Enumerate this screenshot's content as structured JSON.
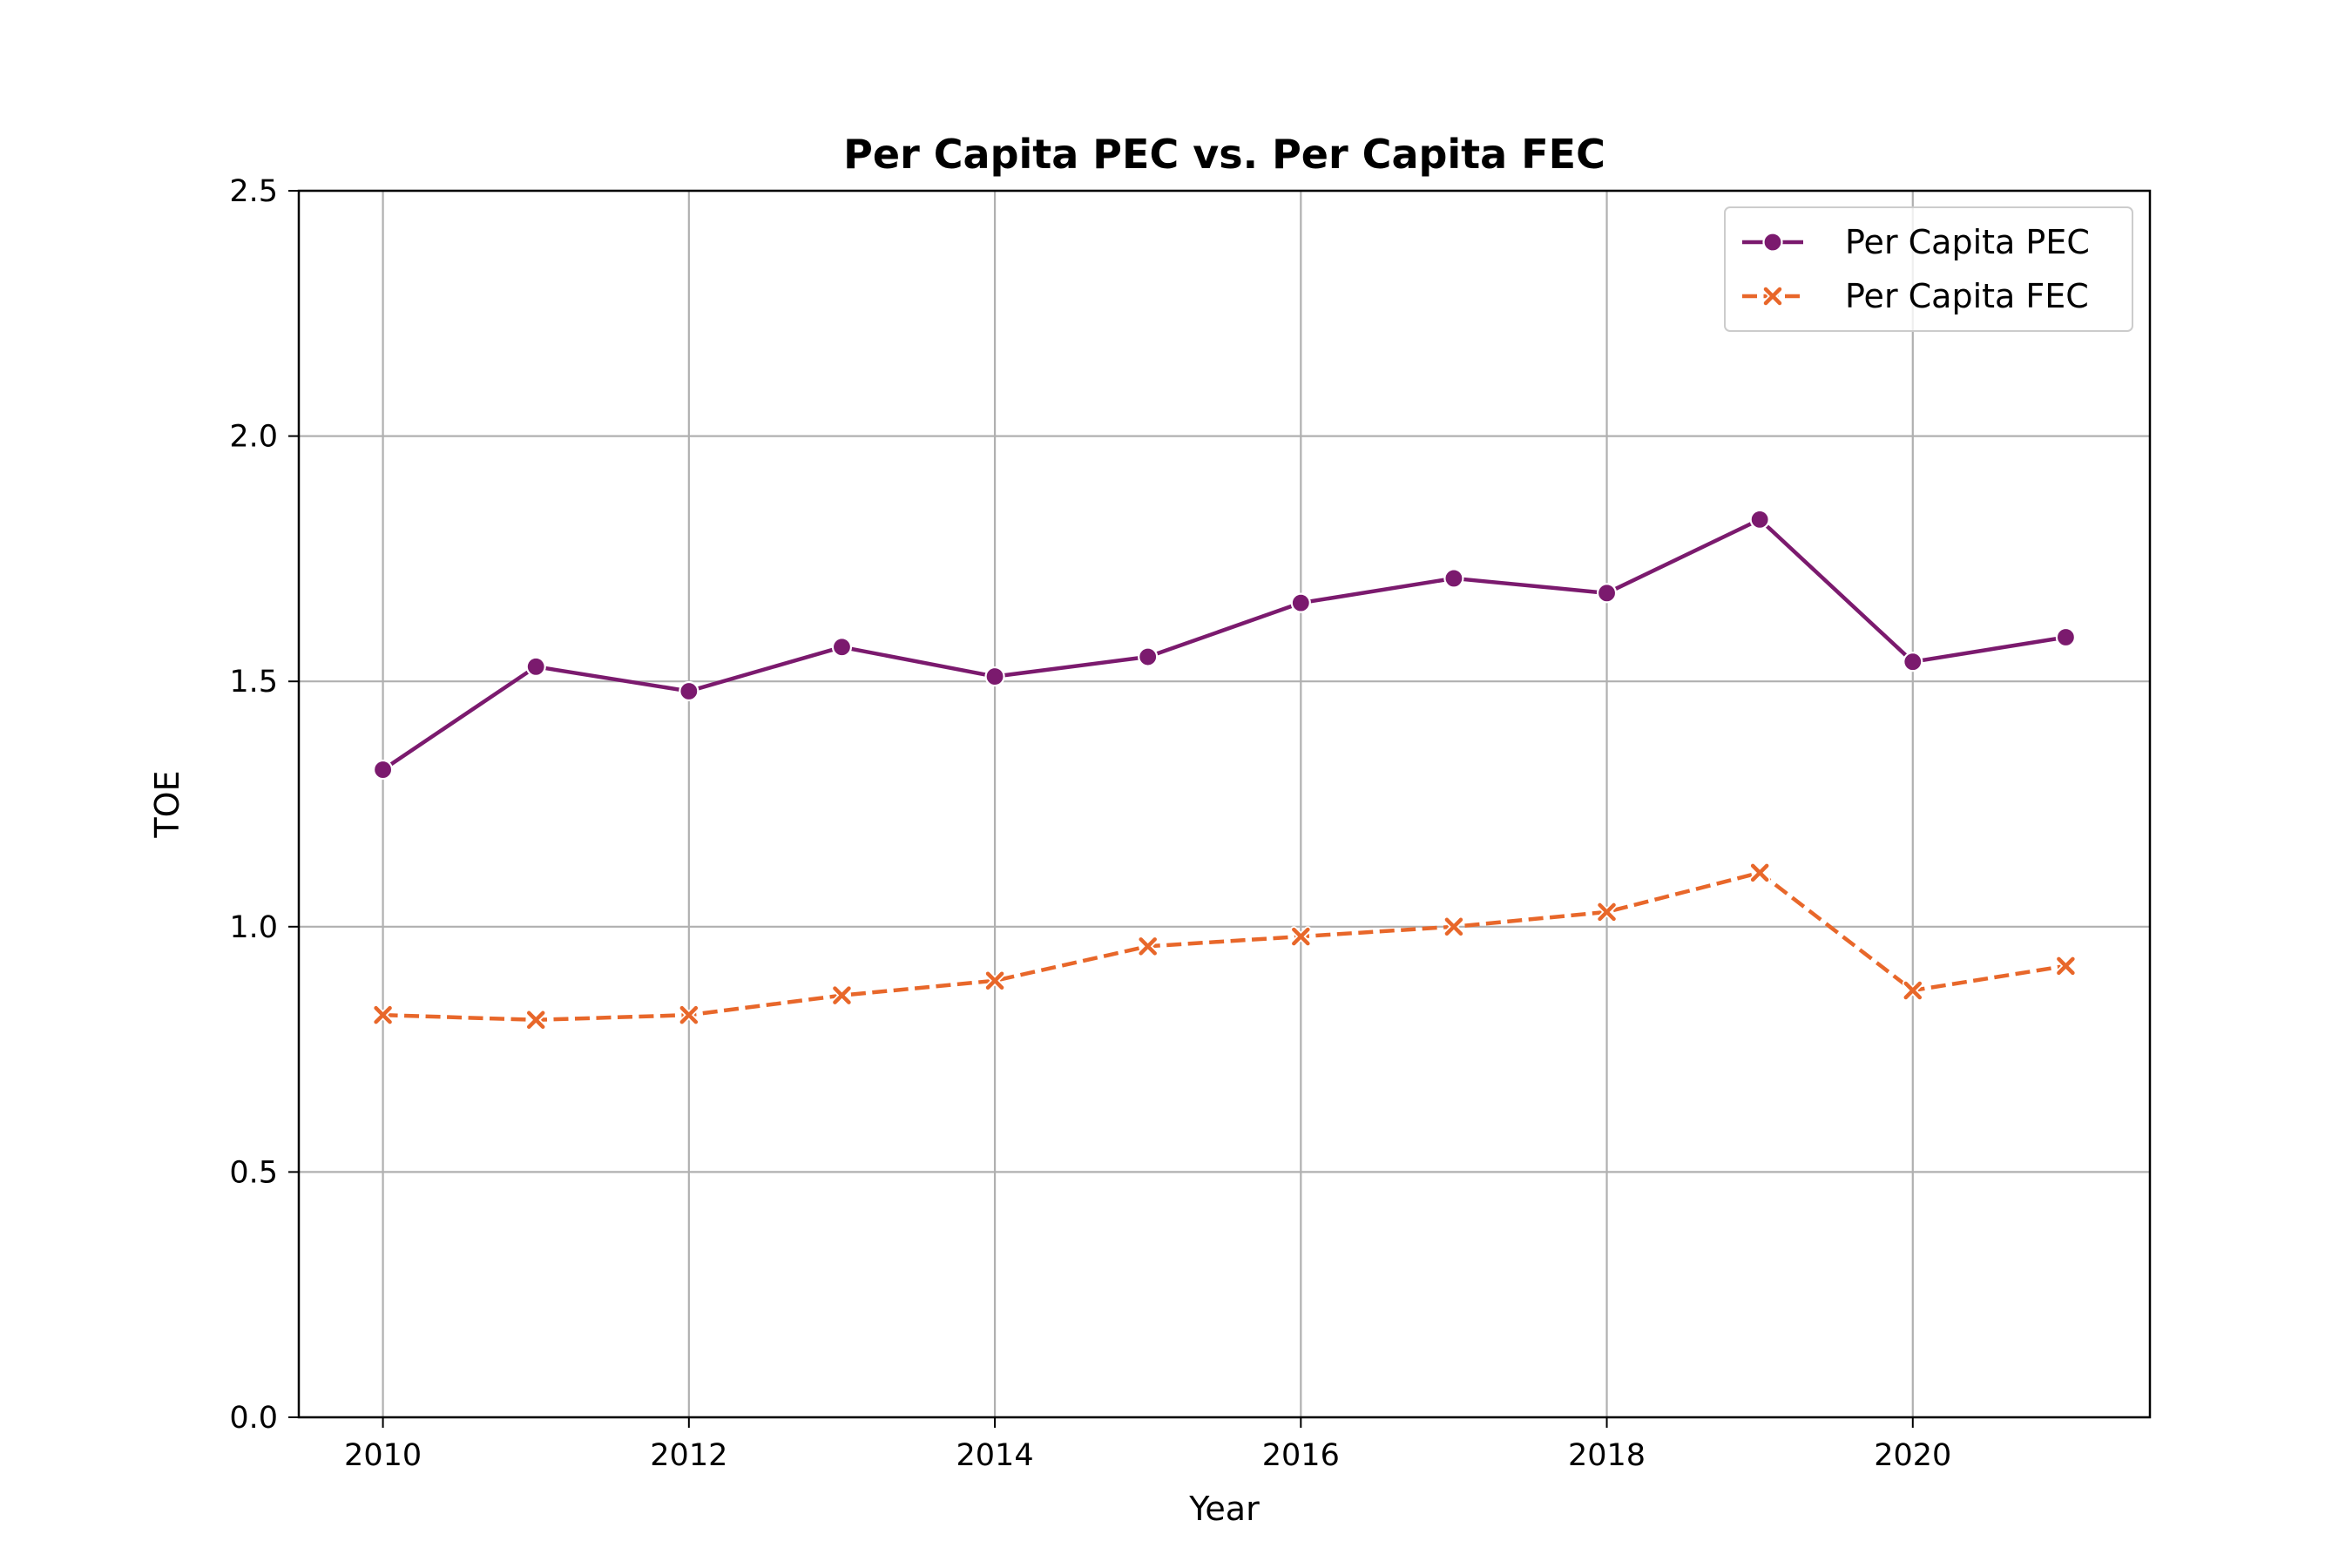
{
  "chart_data": {
    "type": "line",
    "title": "Per Capita PEC vs. Per Capita FEC",
    "xlabel": "Year",
    "ylabel": "TOE",
    "x": [
      2010,
      2011,
      2012,
      2013,
      2014,
      2015,
      2016,
      2017,
      2018,
      2019,
      2020,
      2021
    ],
    "xlim": [
      2009.45,
      2021.55
    ],
    "ylim": [
      0,
      2.5
    ],
    "xticks": [
      "2010",
      "2012",
      "2014",
      "2016",
      "2018",
      "2020"
    ],
    "xtick_values": [
      2010,
      2012,
      2014,
      2016,
      2018,
      2020
    ],
    "yticks": [
      "0.0",
      "0.5",
      "1.0",
      "1.5",
      "2.0",
      "2.5"
    ],
    "ytick_values": [
      0,
      0.5,
      1.0,
      1.5,
      2.0,
      2.5
    ],
    "grid": true,
    "legend_position": "top-right",
    "series": [
      {
        "name": "Per Capita PEC",
        "color": "#7b1a6e",
        "marker": "circle",
        "line_style": "solid",
        "values": [
          1.32,
          1.53,
          1.48,
          1.57,
          1.51,
          1.55,
          1.66,
          1.71,
          1.68,
          1.83,
          1.54,
          1.59
        ]
      },
      {
        "name": "Per Capita FEC",
        "color": "#e8672a",
        "marker": "x",
        "line_style": "dashed",
        "values": [
          0.82,
          0.81,
          0.82,
          0.86,
          0.89,
          0.96,
          0.98,
          1.0,
          1.03,
          1.11,
          0.87,
          0.92
        ]
      }
    ]
  }
}
